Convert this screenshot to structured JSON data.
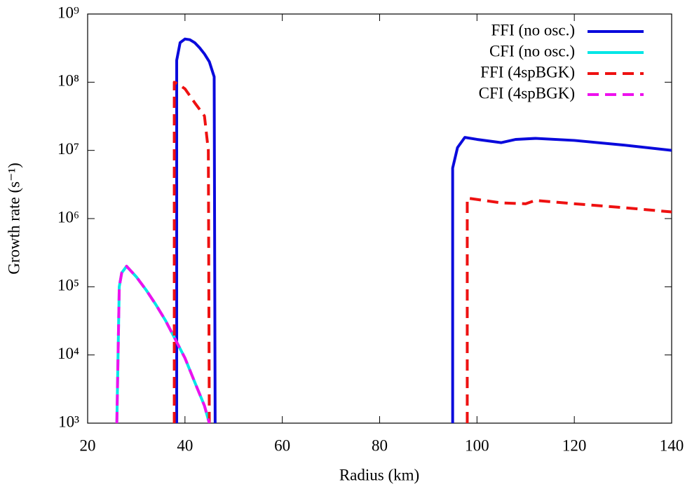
{
  "chart_data": {
    "type": "line",
    "x_label": "Radius (km)",
    "y_label": "Growth rate (s⁻¹)",
    "log_y": true,
    "legend": "top-right",
    "xlim": [
      20,
      140
    ],
    "xticks": [
      20,
      40,
      60,
      80,
      100,
      120,
      140
    ],
    "ylim": [
      1000,
      1000000000
    ],
    "yticks": [
      {
        "value": 1000,
        "label": "10³"
      },
      {
        "value": 10000,
        "label": "10⁴"
      },
      {
        "value": 100000,
        "label": "10⁵"
      },
      {
        "value": 1000000,
        "label": "10⁶"
      },
      {
        "value": 10000000,
        "label": "10⁷"
      },
      {
        "value": 100000000,
        "label": "10⁸"
      },
      {
        "value": 1000000000,
        "label": "10⁹"
      }
    ],
    "series": [
      {
        "name": "FFI (no osc.)",
        "color": "#0a0adc",
        "dashed": false,
        "x": [
          38.3,
          38.3,
          39,
          40,
          41,
          42,
          43,
          44,
          45,
          46,
          46.2,
          null,
          95,
          95,
          96,
          97.5,
          100,
          105,
          108,
          112,
          120,
          130,
          140
        ],
        "values": [
          1000,
          210000000,
          380000000,
          430000000,
          420000000,
          380000000,
          320000000,
          260000000,
          200000000,
          120000000,
          1000,
          null,
          1000,
          5500000,
          11000000,
          15500000,
          14500000,
          13000000,
          14500000,
          15000000,
          14000000,
          12000000,
          10000000
        ]
      },
      {
        "name": "CFI (no osc.)",
        "color": "#00e6e6",
        "dashed": false,
        "x": [
          26,
          26.5,
          27,
          28,
          30,
          32,
          34,
          36,
          38,
          40,
          42,
          44,
          45
        ],
        "values": [
          1000,
          100000,
          160000,
          200000,
          140000,
          90000,
          55000,
          32000,
          17000,
          9000,
          4000,
          1800,
          1000
        ]
      },
      {
        "name": "FFI (4spBGK)",
        "color": "#ee1111",
        "dashed": true,
        "x": [
          37.8,
          37.8,
          38.5,
          40,
          42,
          44,
          44.8,
          45,
          null,
          98,
          98,
          105,
          110,
          112,
          120,
          130,
          140
        ],
        "values": [
          1000,
          100000000,
          95000000,
          80000000,
          50000000,
          32000000,
          10000000,
          1000,
          null,
          1000,
          2000000,
          1700000,
          1650000,
          1850000,
          1650000,
          1450000,
          1250000
        ]
      },
      {
        "name": "CFI (4spBGK)",
        "color": "#ee11ee",
        "dashed": true,
        "x": [
          26,
          26.5,
          27,
          28,
          30,
          32,
          34,
          36,
          38,
          40,
          42,
          44,
          45
        ],
        "values": [
          1000,
          100000,
          160000,
          200000,
          140000,
          90000,
          55000,
          32000,
          17000,
          9000,
          4000,
          1800,
          1000
        ]
      }
    ]
  }
}
